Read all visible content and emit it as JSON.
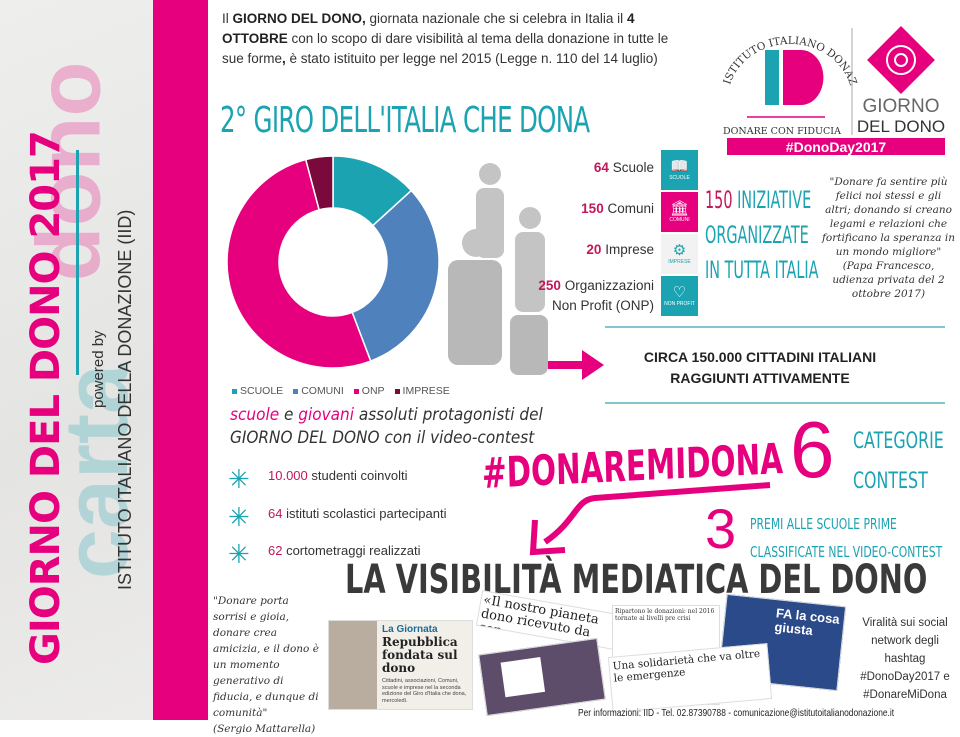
{
  "sidebar": {
    "title": "GIORNO DEL DONO 2017",
    "powered_by": "powered by",
    "institute": "ISTITUTO ITALIANO DELLA DONAZIONE (IID)"
  },
  "intro": {
    "p1": "Il ",
    "b1": "GIORNO DEL DONO,",
    "p2": " giornata nazionale che si celebra in Italia il ",
    "b2": "4 OTTOBRE",
    "p3": " con lo scopo di dare visibilità al tema della donazione in tutte le sue forme",
    "b3": ",",
    "p4": " è stato istituito per legge nel 2015 (Legge n. 110 del 14 luglio)"
  },
  "logo": {
    "arc": "ISTITUTO ITALIANO DONAZIONE",
    "mark": "ID",
    "tagline": "DONARE CON FIDUCIA",
    "giorno": "GIORNO",
    "del_dono": "DEL DONO",
    "hashtag": "#DonoDay2017"
  },
  "section_title": "2° GIRO DELL'ITALIA CHE DONA",
  "chart_data": {
    "type": "pie",
    "donut": true,
    "categories": [
      "SCUOLE",
      "COMUNI",
      "ONP",
      "IMPRESE"
    ],
    "values": [
      64,
      150,
      250,
      20
    ],
    "colors": [
      "#1ba3b2",
      "#4f81bd",
      "#e6007e",
      "#7a0a3c"
    ],
    "legend": "bottom"
  },
  "stats": [
    {
      "num": "64",
      "label": "Scuole"
    },
    {
      "num": "150",
      "label": "Comuni"
    },
    {
      "num": "20",
      "label": "Imprese"
    },
    {
      "num": "250",
      "label": "Organizzazioni",
      "label2": "Non Profit (ONP)"
    }
  ],
  "icon_tiles": [
    {
      "icon": "book-icon",
      "label": "SCUOLE",
      "color": "#1ba3b2"
    },
    {
      "icon": "building-icon",
      "label": "COMUNI",
      "color": "#e6007e"
    },
    {
      "icon": "gears-icon",
      "label": "IMPRESE",
      "color": "#f2f2f2"
    },
    {
      "icon": "heart-icon",
      "label": "NON PROFIT",
      "color": "#1ba3b2"
    }
  ],
  "initiatives": {
    "num": "150",
    "l1": " INIZIATIVE",
    "l2": "ORGANIZZATE",
    "l3": "IN TUTTA ITALIA"
  },
  "quote_pope": {
    "text": "\"Donare fa sentire più felici noi stessi e gli altri; donando si creano legami e relazioni che fortificano la speranza in un mondo migliore\"",
    "source": "(Papa Francesco, udienza privata del 2 ottobre 2017)"
  },
  "citizens": {
    "l1": "CIRCA 150.000 CITTADINI ITALIANI",
    "l2": "RAGGIUNTI ATTIVAMENTE"
  },
  "schools": {
    "w1": "scuole",
    "w2": " e ",
    "w3": "giovani",
    "w4": " assoluti protagonisti del",
    "l2": "GIORNO DEL DONO con il video-contest"
  },
  "bullets": [
    {
      "num": "10.000",
      "text": " studenti coinvolti"
    },
    {
      "num": "64",
      "text": " istituti scolastici partecipanti"
    },
    {
      "num": "62",
      "text": " cortometraggi realizzati"
    }
  ],
  "hashtag_big": "#DONAREMIDONA",
  "categories": {
    "num": "6",
    "l1": "CATEGORIE",
    "l2": "CONTEST"
  },
  "prizes": {
    "num": "3",
    "l1": "PREMI ALLE SCUOLE PRIME",
    "l2": "CLASSIFICATE NEL VIDEO-CONTEST"
  },
  "media_title": "LA VISIBILITÀ MEDIATICA DEL DONO",
  "quote_mattarella": {
    "text": "\"Donare porta sorrisi e gioia, donare crea amicizia, e il dono è un momento generativo di fiducia, e dunque di comunità\"",
    "source": "(Sergio Mattarella)"
  },
  "clippings": {
    "c1_kicker": "La Giornata",
    "c1_head": "Repubblica fondata sul dono",
    "c1_body": "Cittadini, associazioni, Comuni, scuole e imprese nel la seconda edizione del Giro d'Italia che dona, mercoledì.",
    "c2_head": "«Il nostro pianeta dono ricevuto da con",
    "c3_head": "Ripartono le donazioni: nel 2016 tornate ai livelli pre crisi",
    "c4_head": "Una solidarietà che va oltre le emergenze",
    "c5_head": "FA la cosa giusta"
  },
  "virality": {
    "text": "Viralità sui social network degli hashtag",
    "h1": "#DonoDay2017",
    "and": " e",
    "h2": "#DonareMiDona"
  },
  "footer": "Per informazioni: IID - Tel. 02.87390788 - comunicazione@istitutoitalianodonazione.it"
}
